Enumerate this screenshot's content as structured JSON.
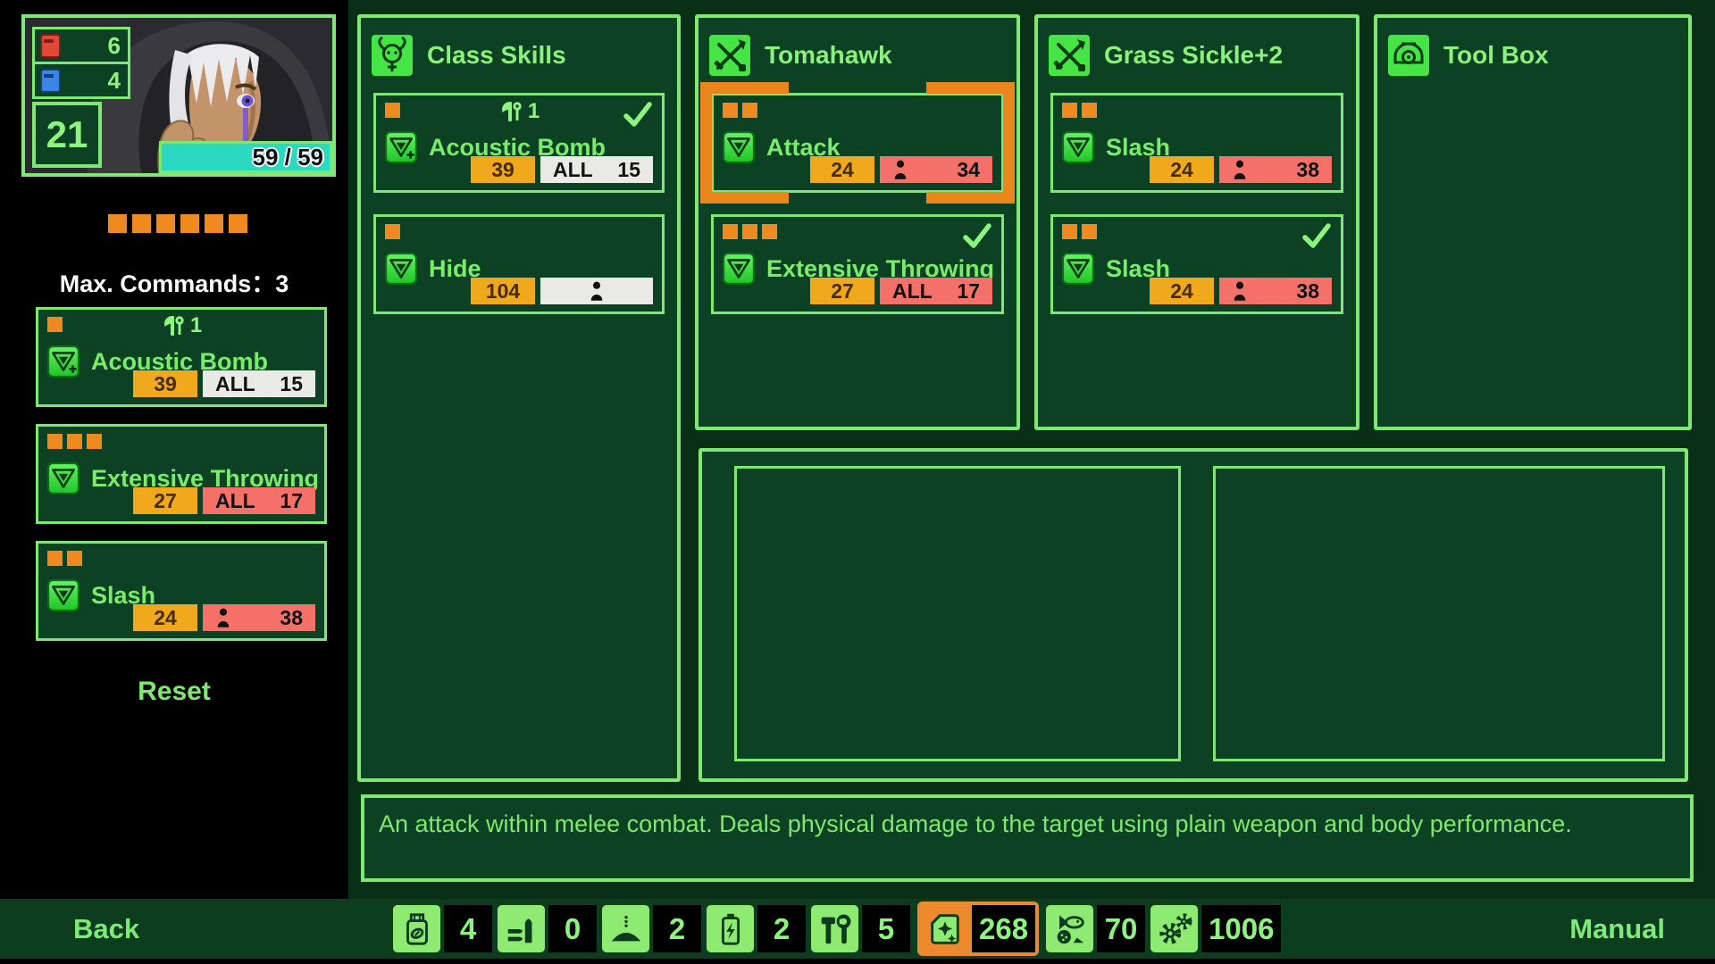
{
  "sidebar": {
    "red_book_count": "6",
    "blue_book_count": "4",
    "level": "21",
    "hp": "59 / 59",
    "command_pips": 6,
    "max_commands_label": "Max. Commands：3",
    "reset_label": "Reset",
    "cards": [
      {
        "name": "Acoustic Bomb",
        "pips": 1,
        "equip_count": "1",
        "stat1": "39",
        "stat2_label": "ALL",
        "stat2": "15"
      },
      {
        "name": "Extensive Throwing",
        "pips": 3,
        "stat1": "27",
        "stat2_label": "ALL",
        "stat2": "17"
      },
      {
        "name": "Slash",
        "pips": 2,
        "stat1": "24",
        "stat2": "38"
      }
    ]
  },
  "panels": [
    {
      "title": "Class Skills",
      "icon": "mask-icon",
      "cards": [
        {
          "name": "Acoustic Bomb",
          "pips": 1,
          "equip_count": "1",
          "checked": true,
          "stat1": "39",
          "stat2_label": "ALL",
          "stat2": "15"
        },
        {
          "name": "Hide",
          "pips": 1,
          "stat1": "104"
        }
      ]
    },
    {
      "title": "Tomahawk",
      "icon": "crossed-weapons-icon",
      "cards": [
        {
          "name": "Attack",
          "pips": 2,
          "selected": true,
          "stat1": "24",
          "stat2": "34"
        },
        {
          "name": "Extensive Throwing",
          "pips": 3,
          "checked": true,
          "stat1": "27",
          "stat2_label": "ALL",
          "stat2": "17"
        }
      ]
    },
    {
      "title": "Grass Sickle+2",
      "icon": "crossed-weapons-icon",
      "cards": [
        {
          "name": "Slash",
          "pips": 2,
          "stat1": "24",
          "stat2": "38"
        },
        {
          "name": "Slash",
          "pips": 2,
          "checked": true,
          "stat1": "24",
          "stat2": "38"
        }
      ]
    },
    {
      "title": "Tool Box",
      "icon": "helmet-icon",
      "cards": []
    }
  ],
  "description": "An attack within melee combat. Deals physical damage to the target using plain weapon and body performance.",
  "footer": {
    "back_label": "Back",
    "manual_label": "Manual",
    "items": [
      {
        "icon": "medicine-icon",
        "count": "4"
      },
      {
        "icon": "ammo-icon",
        "count": "0"
      },
      {
        "icon": "powder-icon",
        "count": "2"
      },
      {
        "icon": "battery-icon",
        "count": "2"
      },
      {
        "icon": "tools-icon",
        "count": "5"
      },
      {
        "icon": "fuel-icon",
        "count": "268",
        "highlighted": true
      },
      {
        "icon": "food-icon",
        "count": "70"
      },
      {
        "icon": "gears-icon",
        "count": "1006"
      }
    ]
  },
  "colors": {
    "accent_green": "#7ee874",
    "text_green": "#79ed6b",
    "panel_bg": "#0d4124",
    "backdrop_green": "#0a2f17",
    "orange": "#ee8a1f",
    "badge_orange": "#f0a91c",
    "badge_red": "#f4716a",
    "badge_white": "#e9eae6",
    "hp_teal": "#2bd9c0",
    "footer_bg": "#0c3d1f",
    "slot_green": "#8eea70",
    "highlight_orange": "#ec8a2d"
  }
}
